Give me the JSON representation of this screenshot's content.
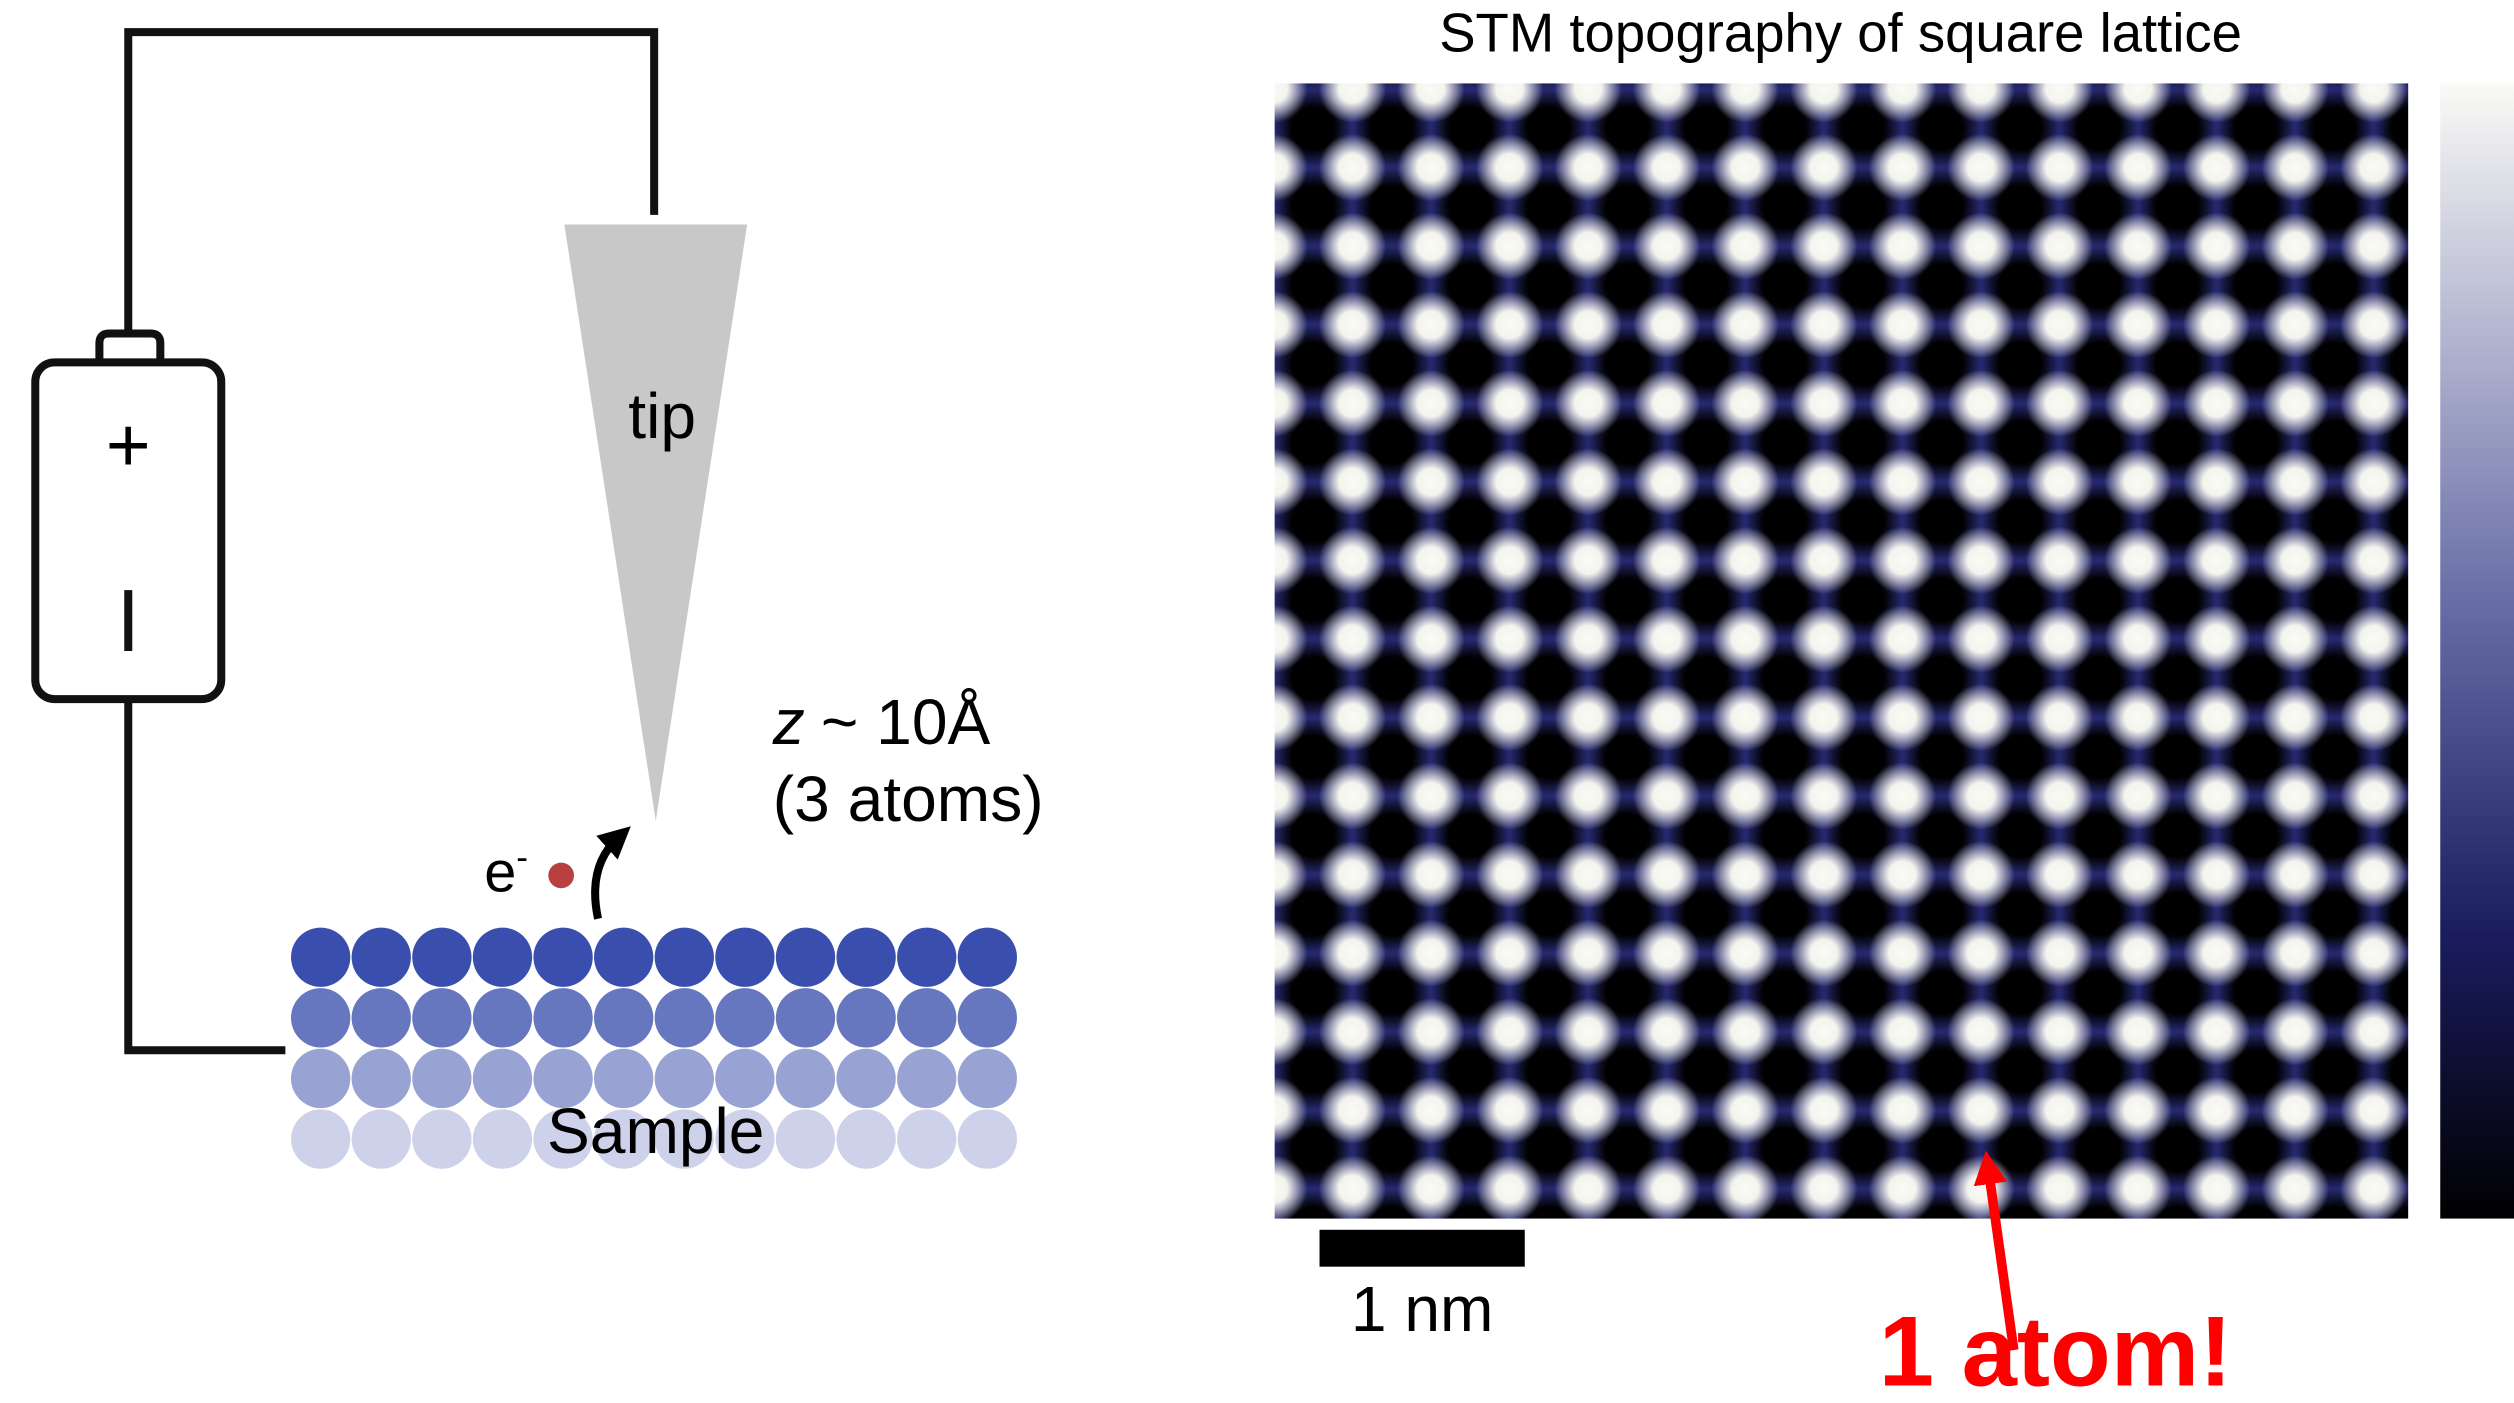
{
  "diagram": {
    "tip_label": "tip",
    "battery": {
      "positive": "+"
    },
    "electron": {
      "symbol": "e",
      "charge": "-"
    },
    "gap": {
      "variable": "z",
      "distance": "~ 10Å",
      "note": "(3 atoms)"
    },
    "sample_label": "Sample"
  },
  "image": {
    "title": "STM topography of square lattice",
    "scale_bar": "1 nm",
    "annotation": "1 atom!"
  }
}
